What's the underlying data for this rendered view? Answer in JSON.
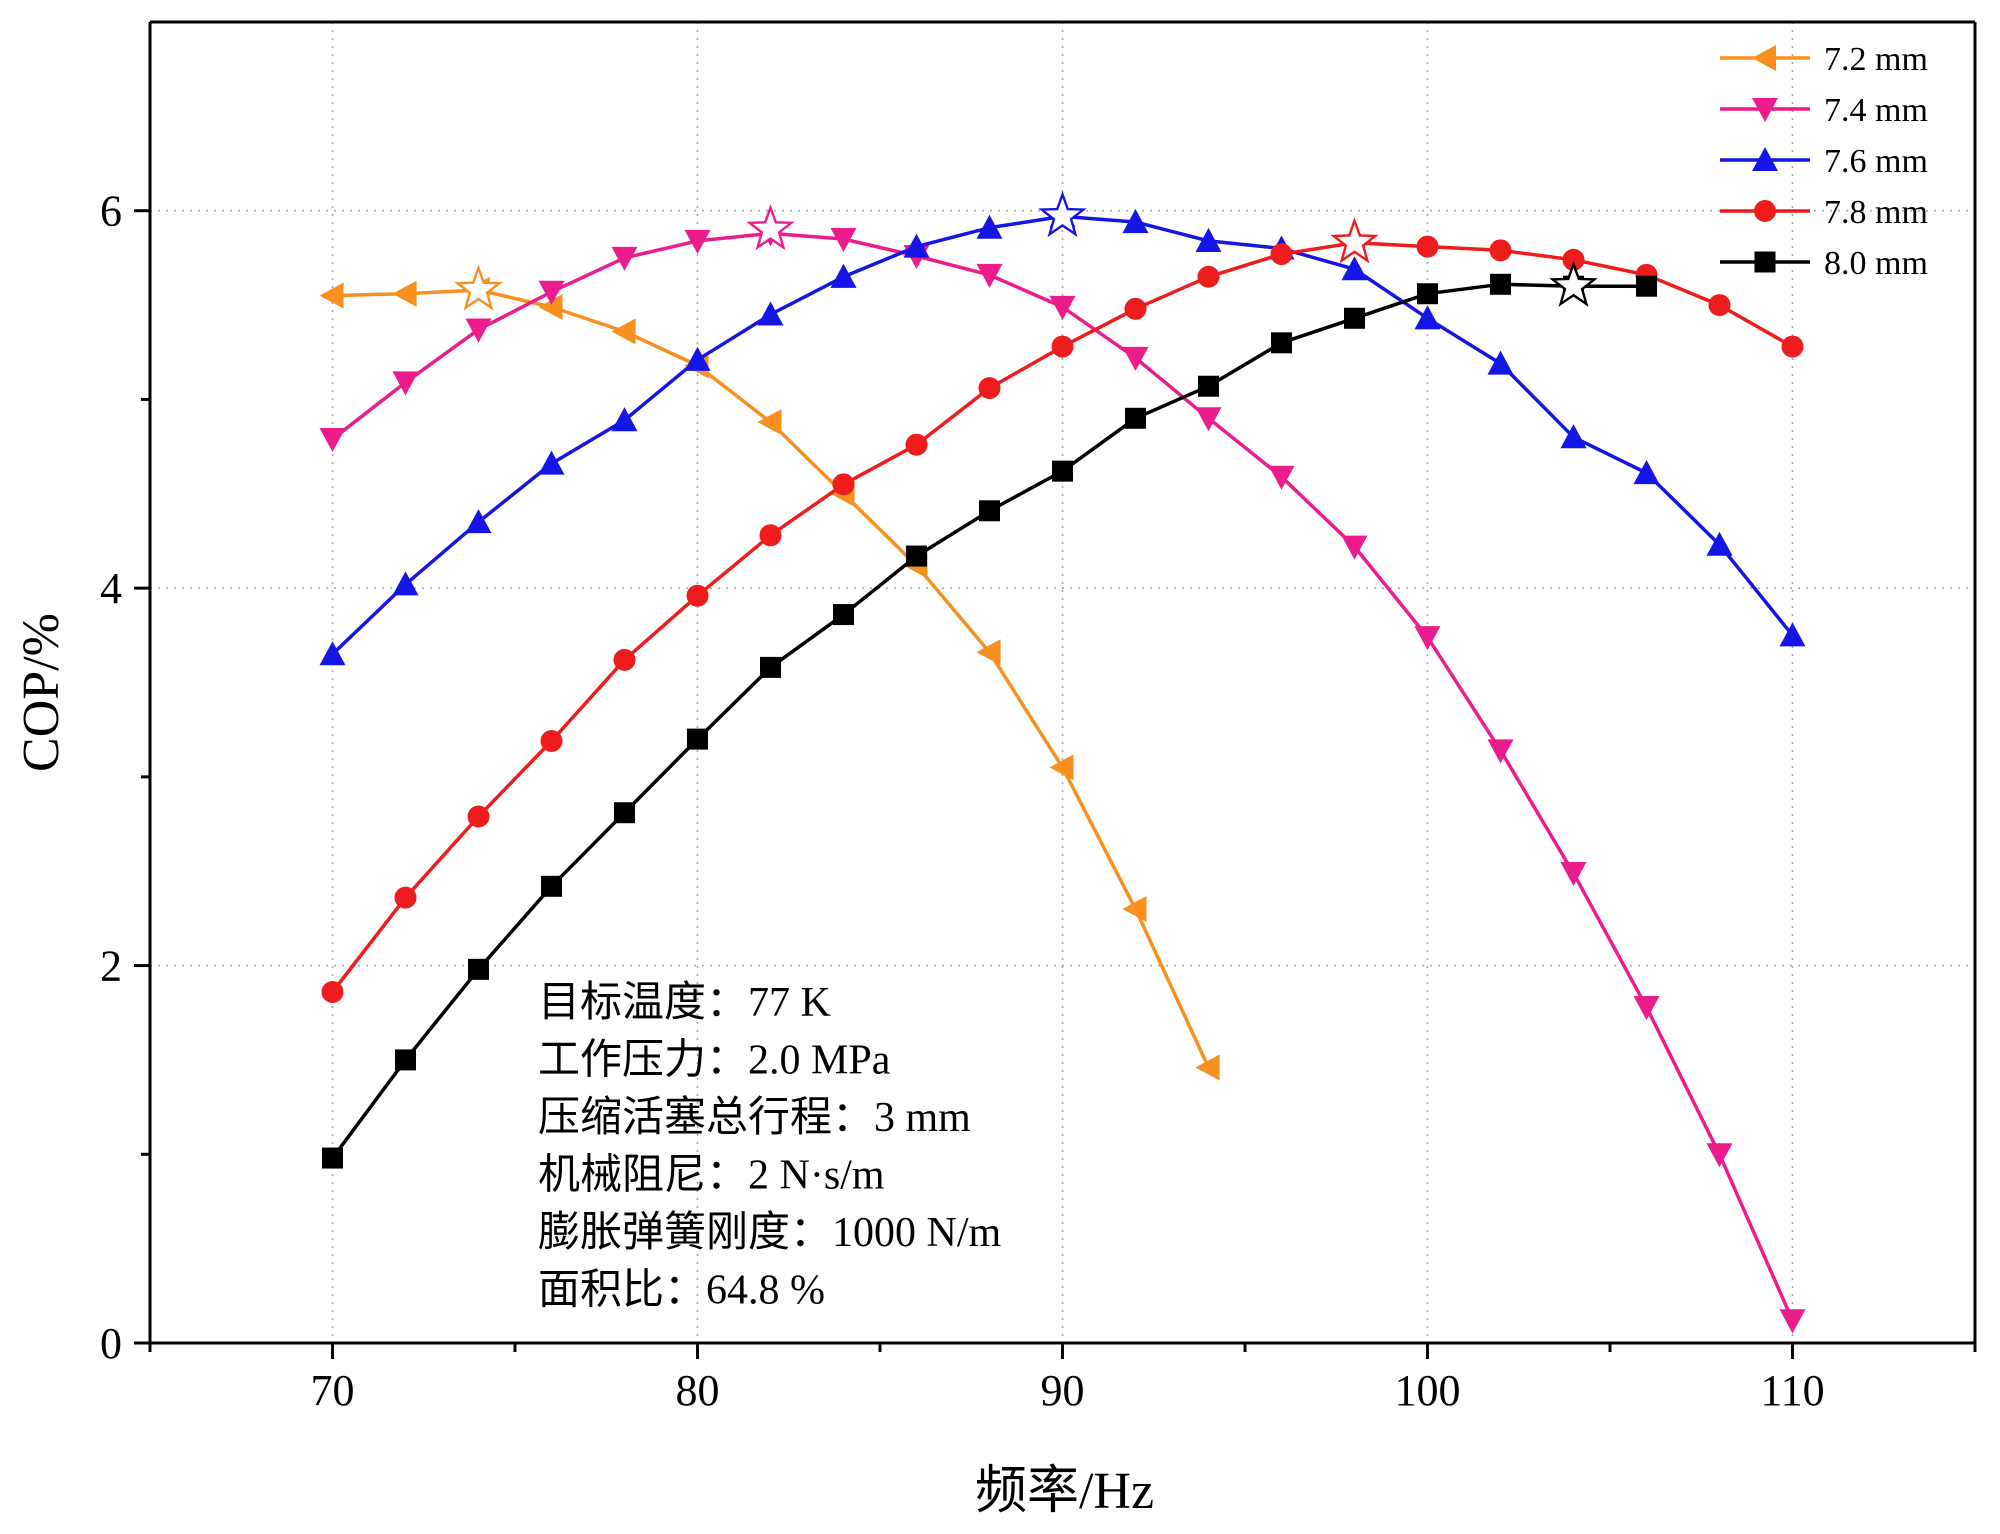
{
  "chart_data": {
    "type": "line",
    "xlabel": "频率/Hz",
    "ylabel": "COP/%",
    "xlim": [
      65,
      115
    ],
    "ylim": [
      0,
      7
    ],
    "x_ticks": [
      70,
      80,
      90,
      100,
      110
    ],
    "y_ticks": [
      0,
      2,
      4,
      6
    ],
    "grid": true,
    "legend_position": "top-right",
    "series": [
      {
        "name": "7.2 mm",
        "color": "#f7901e",
        "marker": "triangle-left",
        "x": [
          70,
          72,
          74,
          76,
          78,
          80,
          82,
          84,
          86,
          88,
          90,
          92,
          94
        ],
        "y": [
          5.55,
          5.56,
          5.58,
          5.49,
          5.36,
          5.18,
          4.88,
          4.5,
          4.12,
          3.66,
          3.05,
          2.3,
          1.46
        ],
        "optimum": {
          "x": 74,
          "y": 5.58
        }
      },
      {
        "name": "7.4 mm",
        "color": "#ec1c8c",
        "marker": "triangle-down",
        "x": [
          70,
          72,
          74,
          76,
          78,
          80,
          82,
          84,
          86,
          88,
          90,
          92,
          94,
          96,
          98,
          100,
          102,
          104,
          106,
          108,
          110
        ],
        "y": [
          4.79,
          5.09,
          5.37,
          5.57,
          5.75,
          5.84,
          5.88,
          5.85,
          5.76,
          5.66,
          5.49,
          5.22,
          4.9,
          4.59,
          4.22,
          3.74,
          3.14,
          2.49,
          1.78,
          1.0,
          0.12
        ],
        "optimum": {
          "x": 82,
          "y": 5.9
        }
      },
      {
        "name": "7.6 mm",
        "color": "#1515e6",
        "marker": "triangle-up",
        "x": [
          70,
          72,
          74,
          76,
          78,
          80,
          82,
          84,
          86,
          88,
          90,
          92,
          94,
          96,
          98,
          100,
          102,
          104,
          106,
          108,
          110
        ],
        "y": [
          3.65,
          4.02,
          4.35,
          4.66,
          4.89,
          5.21,
          5.45,
          5.65,
          5.81,
          5.91,
          5.97,
          5.94,
          5.84,
          5.8,
          5.69,
          5.43,
          5.19,
          4.8,
          4.61,
          4.23,
          3.75
        ],
        "optimum": {
          "x": 90,
          "y": 5.97
        }
      },
      {
        "name": "7.8 mm",
        "color": "#ee1c1c",
        "marker": "circle",
        "x": [
          70,
          72,
          74,
          76,
          78,
          80,
          82,
          84,
          86,
          88,
          90,
          92,
          94,
          96,
          98,
          100,
          102,
          104,
          106,
          108,
          110
        ],
        "y": [
          1.86,
          2.36,
          2.79,
          3.19,
          3.62,
          3.96,
          4.28,
          4.55,
          4.76,
          5.06,
          5.28,
          5.48,
          5.65,
          5.77,
          5.83,
          5.81,
          5.79,
          5.74,
          5.66,
          5.5,
          5.28
        ],
        "optimum": {
          "x": 98,
          "y": 5.83
        }
      },
      {
        "name": "8.0 mm",
        "color": "#000000",
        "marker": "square",
        "x": [
          70,
          72,
          74,
          76,
          78,
          80,
          82,
          84,
          86,
          88,
          90,
          92,
          94,
          96,
          98,
          100,
          102,
          104,
          106
        ],
        "y": [
          0.98,
          1.5,
          1.98,
          2.42,
          2.81,
          3.2,
          3.58,
          3.86,
          4.17,
          4.41,
          4.62,
          4.9,
          5.07,
          5.3,
          5.43,
          5.56,
          5.61,
          5.6,
          5.6
        ],
        "optimum": {
          "x": 104,
          "y": 5.6
        }
      }
    ],
    "annotations": [
      "目标温度：77 K",
      "工作压力：2.0 MPa",
      "压缩活塞总行程：3 mm",
      "机械阻尼：2 N·s/m",
      "膨胀弹簧刚度：1000 N/m",
      "面积比：64.8 %"
    ]
  }
}
